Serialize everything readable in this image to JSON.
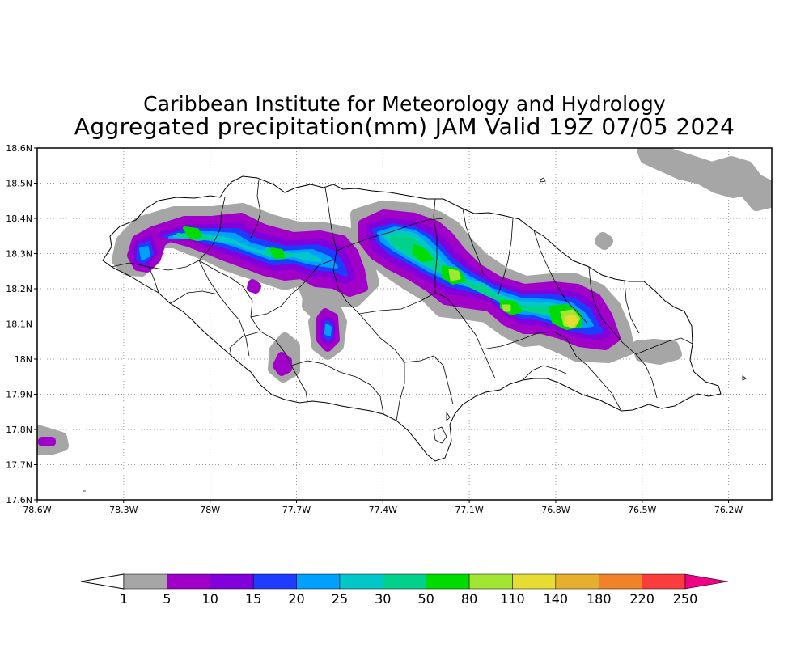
{
  "title_line1": "Caribbean Institute for Meteorology and Hydrology",
  "title_line2": "Aggregated precipitation(mm) JAM Valid 19Z 07/05 2024",
  "map": {
    "lon_range": [
      -78.6,
      -76.05
    ],
    "lat_range": [
      17.6,
      18.6
    ],
    "lat_ticks": [
      {
        "value": 18.6,
        "label": "18.6N"
      },
      {
        "value": 18.5,
        "label": "18.5N"
      },
      {
        "value": 18.4,
        "label": "18.4N"
      },
      {
        "value": 18.3,
        "label": "18.3N"
      },
      {
        "value": 18.2,
        "label": "18.2N"
      },
      {
        "value": 18.1,
        "label": "18.1N"
      },
      {
        "value": 18.0,
        "label": "18N"
      },
      {
        "value": 17.9,
        "label": "17.9N"
      },
      {
        "value": 17.8,
        "label": "17.8N"
      },
      {
        "value": 17.7,
        "label": "17.7N"
      },
      {
        "value": 17.6,
        "label": "17.6N"
      }
    ],
    "lon_ticks": [
      {
        "value": -78.6,
        "label": "78.6W"
      },
      {
        "value": -78.3,
        "label": "78.3W"
      },
      {
        "value": -78.0,
        "label": "78W"
      },
      {
        "value": -77.7,
        "label": "77.7W"
      },
      {
        "value": -77.4,
        "label": "77.4W"
      },
      {
        "value": -77.1,
        "label": "77.1W"
      },
      {
        "value": -76.8,
        "label": "76.8W"
      },
      {
        "value": -76.5,
        "label": "76.5W"
      },
      {
        "value": -76.2,
        "label": "76.2W"
      }
    ],
    "grid": true
  },
  "colorbar": {
    "labels": [
      "1",
      "5",
      "10",
      "15",
      "20",
      "25",
      "30",
      "50",
      "80",
      "110",
      "140",
      "180",
      "220",
      "250"
    ],
    "colors": [
      "#a6a6a6",
      "#a000c8",
      "#8200dc",
      "#1e3cff",
      "#00a0ff",
      "#00c8c8",
      "#00d28c",
      "#00dc00",
      "#a0e632",
      "#e6dc32",
      "#e6af2d",
      "#f08228",
      "#fa3c3c"
    ],
    "low_color": "#ffffff",
    "high_color": "#f00082"
  },
  "colors": {
    "coast": "#000000",
    "grid": "#9a9a9a"
  }
}
